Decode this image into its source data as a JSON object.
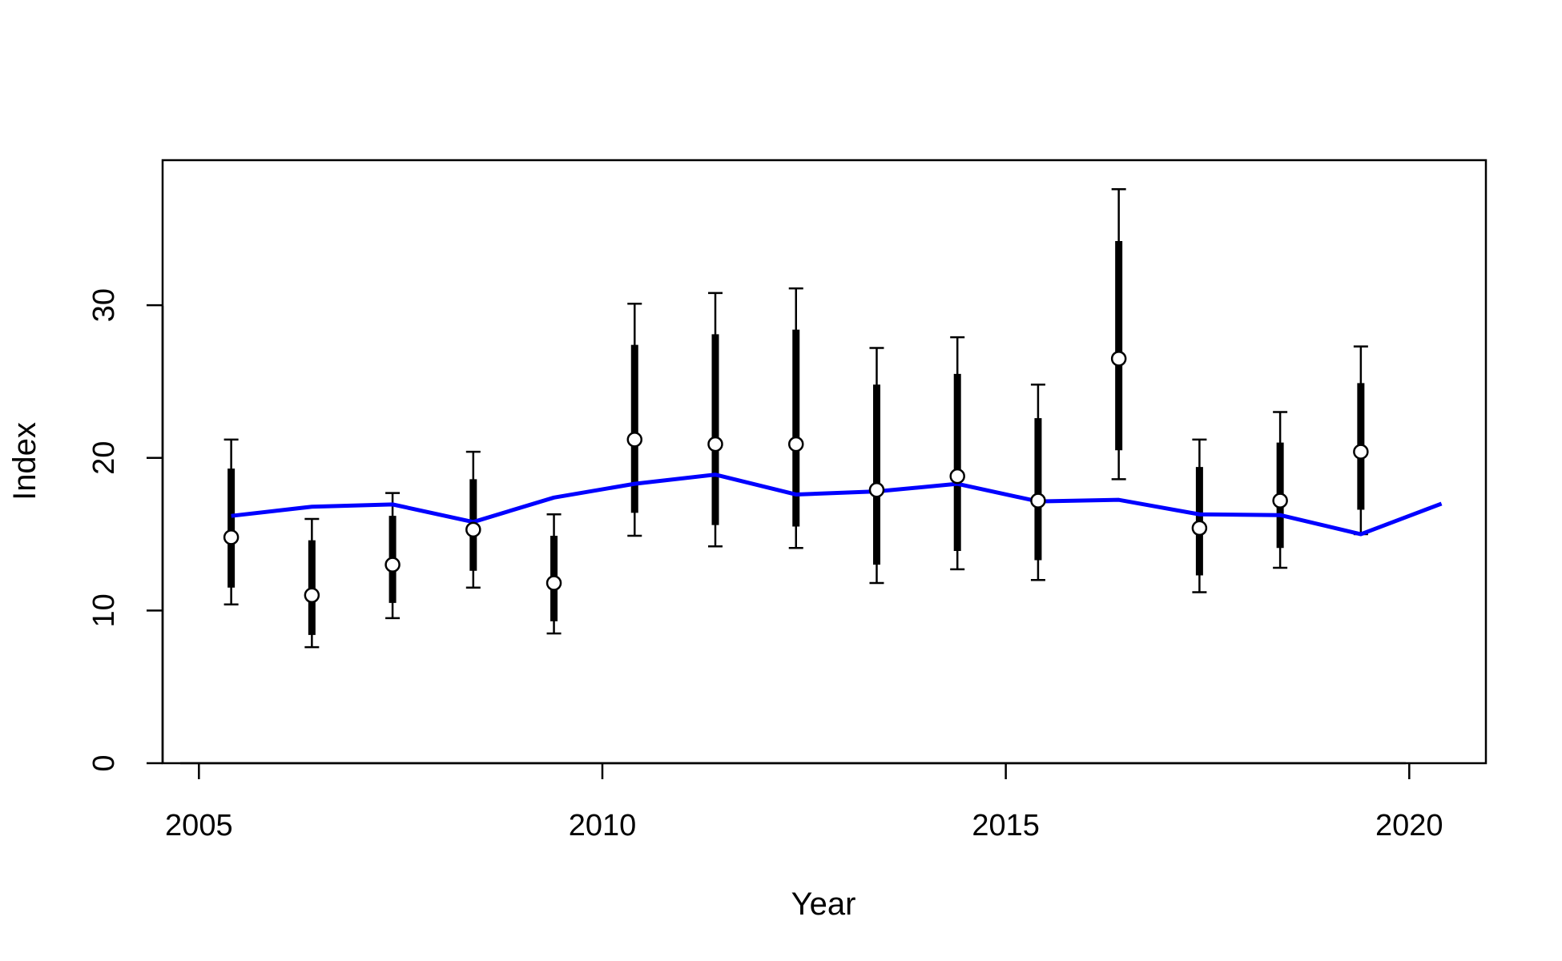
{
  "chart_data": {
    "type": "line",
    "title": "",
    "xlabel": "Year",
    "ylabel": "Index",
    "xlim": [
      2004.55,
      2020.95
    ],
    "ylim": [
      0,
      39.5
    ],
    "x_ticks": [
      "2005",
      "2010",
      "2015",
      "2020"
    ],
    "y_ticks": [
      "0",
      "10",
      "20",
      "30"
    ],
    "grid": false,
    "colors": {
      "fit_line": "#0000ff",
      "observed": "#000000",
      "point_fill": "#ffffff",
      "axes": "#000000"
    },
    "series": [
      {
        "type": "line",
        "x": [
          2005.4,
          2006.4,
          2007.4,
          2008.4,
          2009.4,
          2010.4,
          2011.4,
          2012.4,
          2013.4,
          2014.4,
          2015.4,
          2016.4,
          2017.4,
          2018.4,
          2019.4,
          2020.4
        ],
        "y": [
          16.2,
          16.8,
          16.95,
          15.8,
          17.4,
          18.3,
          18.9,
          17.6,
          17.8,
          18.3,
          17.15,
          17.25,
          16.3,
          16.25,
          15.0,
          17.0
        ]
      },
      {
        "type": "scatter",
        "x": [
          2005.4,
          2006.4,
          2007.4,
          2008.4,
          2009.4,
          2010.4,
          2011.4,
          2012.4,
          2013.4,
          2014.4,
          2015.4,
          2016.4,
          2017.4,
          2018.4,
          2019.4
        ],
        "y": [
          14.8,
          11.0,
          13.0,
          15.3,
          11.8,
          21.2,
          20.9,
          20.9,
          17.9,
          18.8,
          17.2,
          26.5,
          15.4,
          17.2,
          20.4
        ],
        "inner_interval": [
          [
            11.5,
            19.3
          ],
          [
            8.4,
            14.6
          ],
          [
            10.5,
            16.2
          ],
          [
            12.6,
            18.6
          ],
          [
            9.3,
            14.9
          ],
          [
            16.4,
            27.4
          ],
          [
            15.6,
            28.1
          ],
          [
            15.5,
            28.4
          ],
          [
            13.0,
            24.8
          ],
          [
            13.9,
            25.5
          ],
          [
            13.3,
            22.6
          ],
          [
            20.5,
            34.2
          ],
          [
            12.3,
            19.4
          ],
          [
            14.1,
            21.0
          ],
          [
            16.6,
            24.9
          ]
        ],
        "outer_interval": [
          [
            10.4,
            21.2
          ],
          [
            7.6,
            16.0
          ],
          [
            9.5,
            17.7
          ],
          [
            11.5,
            20.4
          ],
          [
            8.5,
            16.3
          ],
          [
            14.9,
            30.1
          ],
          [
            14.2,
            30.8
          ],
          [
            14.1,
            31.1
          ],
          [
            11.8,
            27.2
          ],
          [
            12.7,
            27.9
          ],
          [
            12.0,
            24.8
          ],
          [
            18.6,
            37.6
          ],
          [
            11.2,
            21.2
          ],
          [
            12.8,
            23.0
          ],
          [
            15.0,
            27.3
          ]
        ]
      }
    ]
  }
}
